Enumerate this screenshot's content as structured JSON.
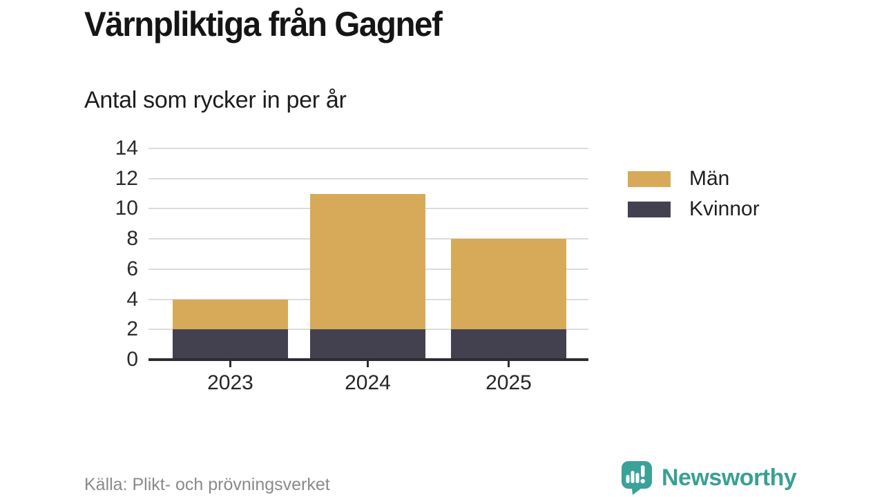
{
  "header": {
    "title": "Värnpliktiga från Gagnef",
    "subtitle": "Antal som rycker in per år"
  },
  "chart_data": {
    "type": "bar",
    "stacked": true,
    "title": "Värnpliktiga från Gagnef",
    "subtitle": "Antal som rycker in per år",
    "categories": [
      "2023",
      "2024",
      "2025"
    ],
    "series": [
      {
        "name": "Män",
        "color": "#d7aa5a",
        "values": [
          2,
          9,
          6
        ]
      },
      {
        "name": "Kvinnor",
        "color": "#434150",
        "values": [
          2,
          2,
          2
        ]
      }
    ],
    "stack_order_bottom_to_top": [
      "Kvinnor",
      "Män"
    ],
    "totals": [
      4,
      11,
      8
    ],
    "ylim": [
      0,
      14
    ],
    "yticks": [
      0,
      2,
      4,
      6,
      8,
      10,
      12,
      14
    ],
    "grid": true,
    "legend_position": "right",
    "xlabel": "",
    "ylabel": ""
  },
  "footer": {
    "source": "Källa: Plikt- och prövningsverket",
    "brand": "Newsworthy"
  },
  "colors": {
    "men": "#d7aa5a",
    "women": "#434150",
    "grid": "#dcdcdc",
    "axis": "#2d2c32",
    "text_dark": "#151515",
    "source_gray": "#8a8a8a",
    "brand_teal": "#38a093"
  }
}
